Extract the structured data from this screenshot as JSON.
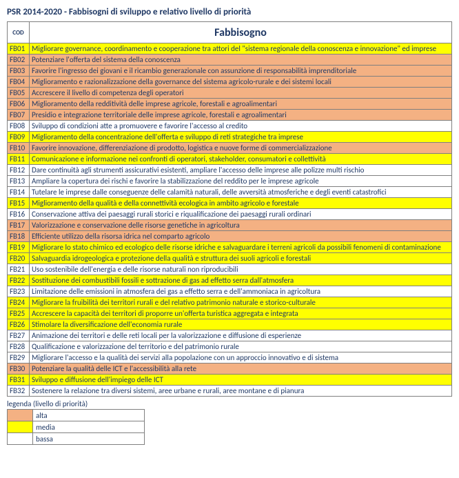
{
  "title": "PSR 2014-2020 - Fabbisogni di sviluppo e relativo livello di priorità",
  "columns": {
    "cod": "COD",
    "fab": "Fabbisogno"
  },
  "priority_colors": {
    "alta": "#f4b183",
    "media": "#ffff00",
    "bassa": "#ffffff"
  },
  "legend": {
    "title": "legenda (livello di priorità)",
    "items": [
      {
        "label": "alta",
        "color": "#f4b183"
      },
      {
        "label": "media",
        "color": "#ffff00"
      },
      {
        "label": "bassa",
        "color": "#ffffff"
      }
    ]
  },
  "rows": [
    {
      "code": "FB01",
      "priority": "media",
      "desc": "Migliorare governance, coordinamento e cooperazione tra attori del \"sistema regionale della conoscenza e innovazione\" ed imprese"
    },
    {
      "code": "FB02",
      "priority": "alta",
      "desc": "Potenziare l'offerta del sistema della conoscenza"
    },
    {
      "code": "FB03",
      "priority": "alta",
      "desc": "Favorire l'ingresso dei giovani e il ricambio generazionale con assunzione di responsabilità imprenditoriale"
    },
    {
      "code": "FB04",
      "priority": "alta",
      "desc": "Miglioramento e razionalizzazione della governance del sistema agricolo-rurale e dei sistemi locali"
    },
    {
      "code": "FB05",
      "priority": "alta",
      "desc": "Accrescere il livello di competenza degli operatori"
    },
    {
      "code": "FB06",
      "priority": "alta",
      "desc": "Miglioramento della redditività delle imprese agricole, forestali e agroalimentari"
    },
    {
      "code": "FB07",
      "priority": "alta",
      "desc": "Presidio e integrazione territoriale delle imprese agricole, forestali e agroalimentari"
    },
    {
      "code": "FB08",
      "priority": "bassa",
      "desc": "Sviluppo di condizioni atte a promuovere e favorire l'accesso al credito"
    },
    {
      "code": "FB09",
      "priority": "media",
      "desc": "Miglioramento della concentrazione dell'offerta e sviluppo di reti strategiche tra imprese"
    },
    {
      "code": "FB10",
      "priority": "alta",
      "desc": "Favorire innovazione, differenziazione di prodotto, logistica e nuove forme di commercializzazione"
    },
    {
      "code": "FB11",
      "priority": "media",
      "desc": "Comunicazione e informazione nei confronti di operatori, stakeholder, consumatori e collettività"
    },
    {
      "code": "FB12",
      "priority": "bassa",
      "desc": "Dare continuità agli strumenti assicurativi esistenti, ampliare l'accesso delle imprese alle polizze multi rischio"
    },
    {
      "code": "FB13",
      "priority": "bassa",
      "desc": "Ampliare la copertura dei rischi e favorire la stabilizzazione del reddito per le imprese agricole"
    },
    {
      "code": "FB14",
      "priority": "bassa",
      "desc": "Tutelare le imprese dalle conseguenze delle calamità naturali, delle avversità atmosferiche e degli eventi catastrofici"
    },
    {
      "code": "FB15",
      "priority": "media",
      "desc": "Miglioramento della qualità e della connettività ecologica in ambito agricolo e forestale"
    },
    {
      "code": "FB16",
      "priority": "bassa",
      "desc": "Conservazione attiva dei paesaggi rurali storici e riqualificazione dei paesaggi rurali ordinari"
    },
    {
      "code": "FB17",
      "priority": "alta",
      "desc": "Valorizzazione e conservazione delle risorse genetiche in agricoltura"
    },
    {
      "code": "FB18",
      "priority": "alta",
      "desc": "Efficiente utilizzo della risorsa idrica nel comparto agricolo"
    },
    {
      "code": "FB19",
      "priority": "media",
      "desc": "Migliorare lo stato chimico ed ecologico delle risorse idriche e salvaguardare i terreni agricoli da possibili fenomeni di contaminazione"
    },
    {
      "code": "FB20",
      "priority": "media",
      "desc": "Salvaguardia idrogeologica e protezione della qualità e struttura dei suoli agricoli e forestali"
    },
    {
      "code": "FB21",
      "priority": "bassa",
      "desc": "Uso sostenibile dell'energia e delle risorse naturali non riproducibili"
    },
    {
      "code": "FB22",
      "priority": "media",
      "desc": "Sostituzione dei combustibili fossili e sottrazione di gas ad effetto serra dall'atmosfera"
    },
    {
      "code": "FB23",
      "priority": "bassa",
      "desc": "Limitazione delle emissioni in atmosfera dei gas a effetto serra e dell'ammoniaca in agricoltura"
    },
    {
      "code": "FB24",
      "priority": "media",
      "desc": "Migliorare la fruibilità dei  territori rurali e del relativo patrimonio naturale e storico-culturale"
    },
    {
      "code": "FB25",
      "priority": "media",
      "desc": "Accrescere la capacità dei territori di proporre un'offerta turistica aggregata e integrata"
    },
    {
      "code": "FB26",
      "priority": "media",
      "desc": "Stimolare la diversificazione dell'economia rurale"
    },
    {
      "code": "FB27",
      "priority": "bassa",
      "desc": "Animazione dei territori e delle reti locali per la valorizzazione e diffusione di esperienze"
    },
    {
      "code": "FB28",
      "priority": "bassa",
      "desc": "Qualificazione e valorizzazione del territorio e del patrimonio rurale"
    },
    {
      "code": "FB29",
      "priority": "bassa",
      "desc": "Migliorare l'accesso e la qualità dei servizi alla popolazione con un approccio innovativo e di sistema"
    },
    {
      "code": "FB30",
      "priority": "alta",
      "desc": "Potenziare la qualità delle ICT e l'accessibilità alla rete"
    },
    {
      "code": "FB31",
      "priority": "media",
      "desc": "Sviluppo e diffusione dell'impiego delle ICT"
    },
    {
      "code": "FB32",
      "priority": "bassa",
      "desc": "Sostenere la relazione tra diversi sistemi, aree urbane e rurali, aree montane e di pianura"
    }
  ]
}
